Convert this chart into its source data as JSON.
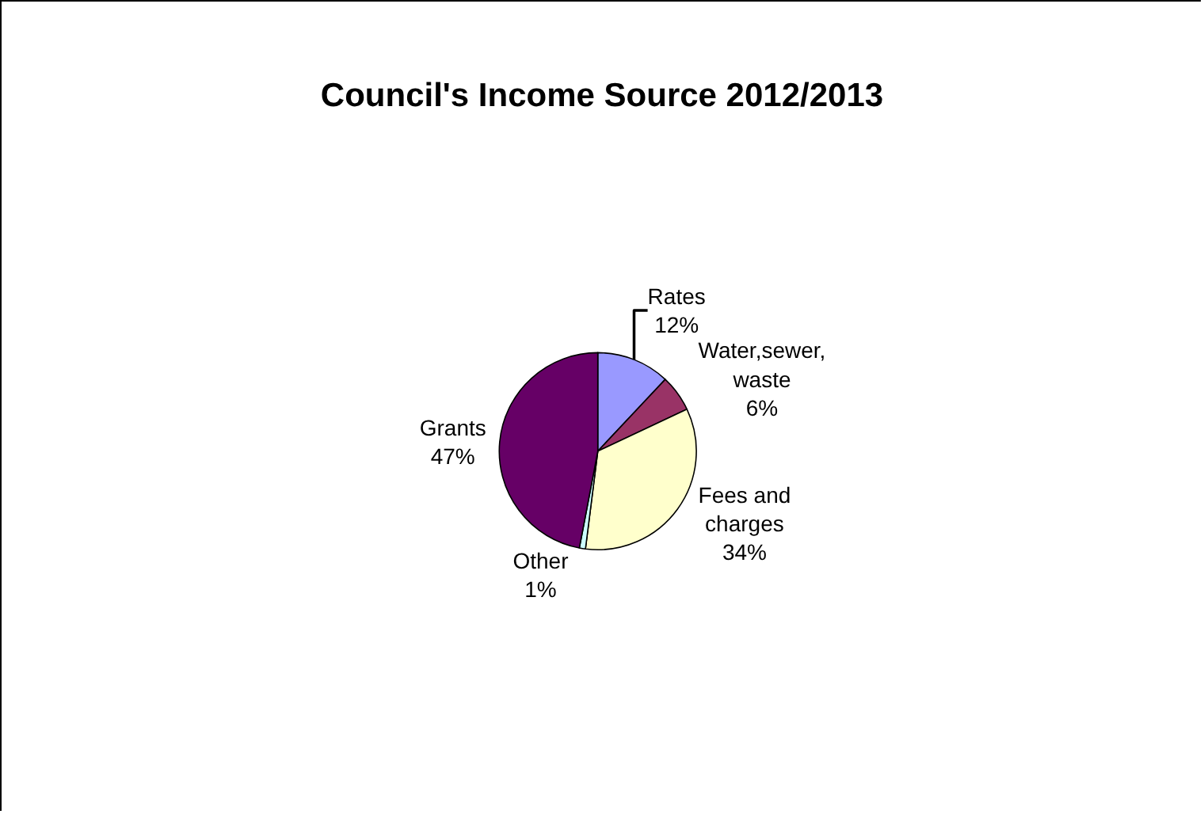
{
  "chart_data": {
    "type": "pie",
    "title": "Council's Income Source 2012/2013",
    "categories": [
      "Rates",
      "Water,sewer,\nwaste",
      "Fees and\ncharges",
      "Other",
      "Grants"
    ],
    "values": [
      12,
      6,
      34,
      1,
      47
    ],
    "value_labels": [
      "12%",
      "6%",
      "34%",
      "1%",
      "47%"
    ],
    "colors": [
      "#9999ff",
      "#993366",
      "#ffffcc",
      "#ccffff",
      "#660066"
    ],
    "legend": false
  }
}
